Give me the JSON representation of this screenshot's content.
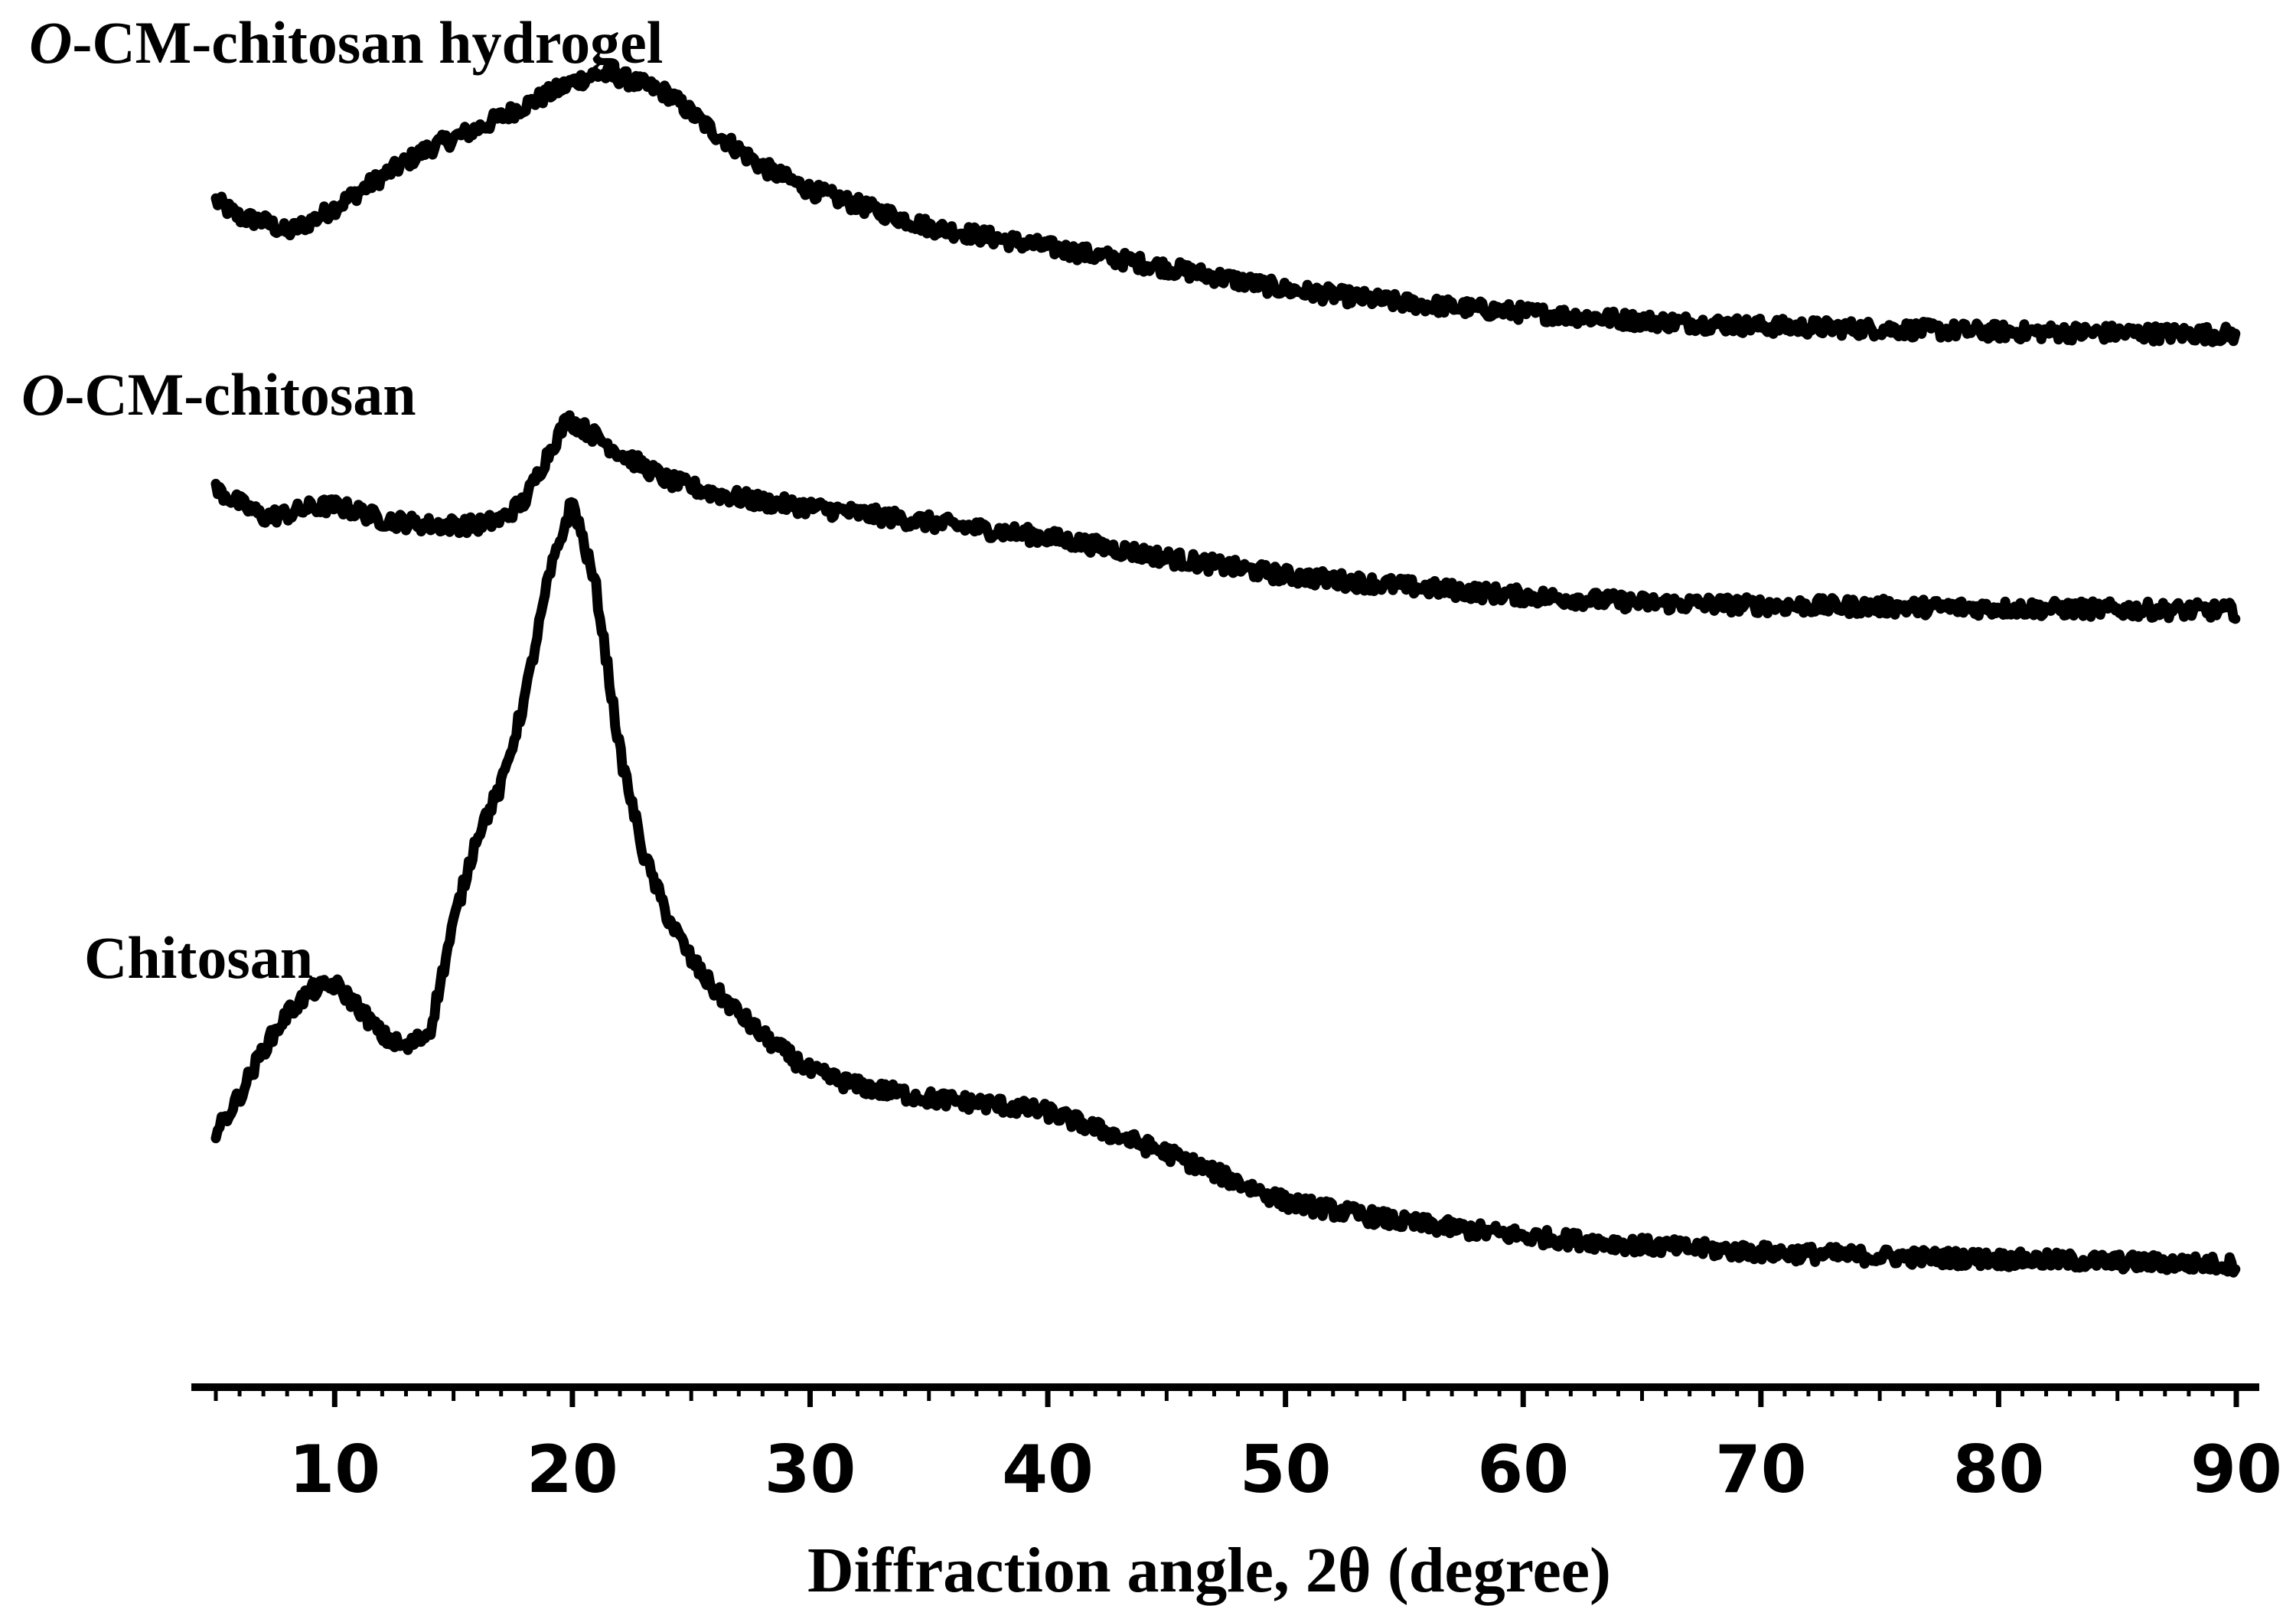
{
  "chart_data": {
    "type": "line",
    "title": "",
    "xlabel": "Diffraction angle, 2θ (degree)",
    "ylabel": "",
    "xlim": [
      5,
      90
    ],
    "xticks": [
      10,
      20,
      30,
      40,
      50,
      60,
      70,
      80,
      90
    ],
    "grid": false,
    "y_axis_shown": false,
    "series": [
      {
        "name": "O-CM-chitosan hydrogel",
        "label_prefix": "O",
        "label_rest": "-CM-chitosan hydrogel",
        "x": [
          5,
          6,
          7,
          8,
          9,
          10,
          12,
          14,
          16,
          18,
          20,
          21,
          22,
          24,
          26,
          28,
          30,
          35,
          40,
          45,
          50,
          55,
          60,
          65,
          70,
          75,
          80,
          85,
          90
        ],
        "y": [
          0.875,
          0.863,
          0.86,
          0.852,
          0.86,
          0.87,
          0.893,
          0.914,
          0.928,
          0.945,
          0.962,
          0.968,
          0.966,
          0.954,
          0.925,
          0.9,
          0.883,
          0.856,
          0.841,
          0.826,
          0.81,
          0.8,
          0.793,
          0.787,
          0.783,
          0.781,
          0.779,
          0.778,
          0.777
        ]
      },
      {
        "name": "O-CM-chitosan",
        "label_prefix": "O",
        "label_rest": "-CM-chitosan",
        "x": [
          5,
          6,
          7,
          8,
          9,
          10,
          11,
          12,
          14,
          16,
          17,
          18,
          19,
          19.8,
          21,
          22,
          24,
          26,
          28,
          30,
          35,
          40,
          45,
          50,
          55,
          60,
          65,
          70,
          75,
          80,
          85,
          90
        ],
        "y": [
          0.663,
          0.653,
          0.643,
          0.645,
          0.65,
          0.651,
          0.647,
          0.641,
          0.637,
          0.637,
          0.641,
          0.655,
          0.69,
          0.715,
          0.702,
          0.69,
          0.67,
          0.66,
          0.654,
          0.65,
          0.639,
          0.628,
          0.613,
          0.6,
          0.592,
          0.585,
          0.58,
          0.578,
          0.577,
          0.576,
          0.575,
          0.574
        ]
      },
      {
        "name": "Chitosan",
        "label_prefix": "",
        "label_rest": "Chitosan",
        "x": [
          5,
          6,
          7,
          8,
          9,
          10,
          11,
          12,
          13,
          14,
          15,
          16,
          17,
          18,
          19,
          20,
          21,
          22,
          23,
          24,
          25,
          26,
          28,
          30,
          32,
          35,
          38,
          40,
          45,
          50,
          55,
          60,
          65,
          70,
          75,
          80,
          85,
          90
        ],
        "y": [
          0.19,
          0.218,
          0.252,
          0.278,
          0.295,
          0.3,
          0.283,
          0.262,
          0.253,
          0.265,
          0.345,
          0.41,
          0.445,
          0.51,
          0.598,
          0.655,
          0.59,
          0.47,
          0.395,
          0.35,
          0.318,
          0.295,
          0.262,
          0.236,
          0.225,
          0.216,
          0.211,
          0.206,
          0.176,
          0.14,
          0.125,
          0.115,
          0.108,
          0.103,
          0.1,
          0.098,
          0.096,
          0.094
        ]
      }
    ]
  }
}
